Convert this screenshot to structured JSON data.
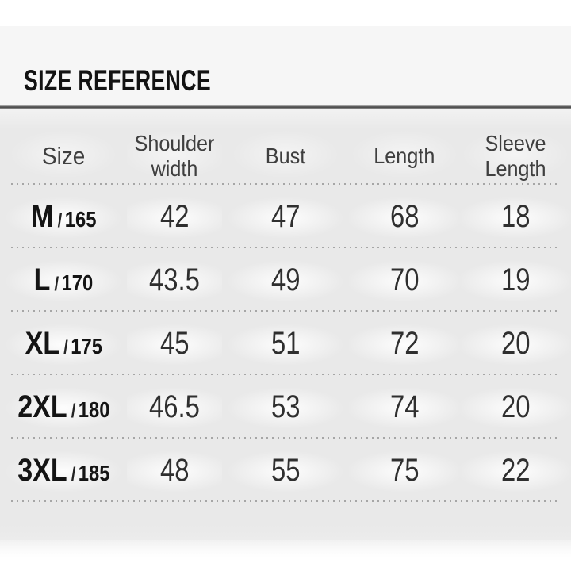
{
  "title": "SIZE REFERENCE",
  "size_separator": "/",
  "columns": [
    "Size",
    "Shoulder width",
    "Bust",
    "Length",
    "Sleeve Length"
  ],
  "rows": [
    {
      "size": "M",
      "height": "165",
      "shoulder": "42",
      "bust": "47",
      "length": "68",
      "sleeve": "18"
    },
    {
      "size": "L",
      "height": "170",
      "shoulder": "43.5",
      "bust": "49",
      "length": "70",
      "sleeve": "19"
    },
    {
      "size": "XL",
      "height": "175",
      "shoulder": "45",
      "bust": "51",
      "length": "72",
      "sleeve": "20"
    },
    {
      "size": "2XL",
      "height": "180",
      "shoulder": "46.5",
      "bust": "53",
      "length": "74",
      "sleeve": "20"
    },
    {
      "size": "3XL",
      "height": "185",
      "shoulder": "48",
      "bust": "55",
      "length": "75",
      "sleeve": "22"
    }
  ],
  "colors": {
    "band": "#f6f6f6",
    "panel": "#e9e9e9",
    "rule": "#4c4c4c",
    "header_text": "#3f3f3f",
    "value_text": "#2f2f2f",
    "size_text": "#141414",
    "dots": "#7d7d7d"
  }
}
